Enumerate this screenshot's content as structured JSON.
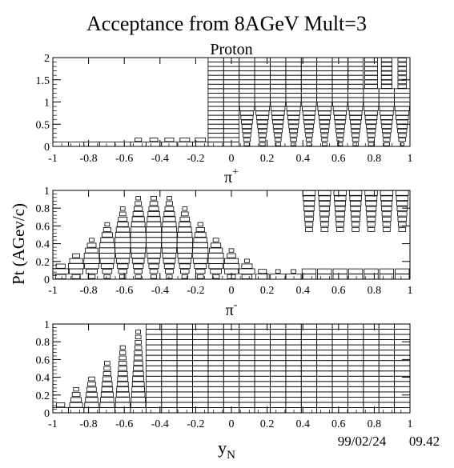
{
  "title": "Acceptance from 8AGeV Mult=3",
  "ylabel": "Pt (AGev/c)",
  "xlabel_base": "y",
  "xlabel_sub": "N",
  "date": "99/02/24",
  "time": "09.42",
  "chart_data": [
    {
      "type": "heatmap",
      "name": "Proton",
      "name_base": "Proton",
      "name_sup": "",
      "xlim": [
        -1,
        1
      ],
      "ylim": [
        0,
        2
      ],
      "xticks": [
        "-1",
        "-0.8",
        "-0.6",
        "-0.4",
        "-0.2",
        "0",
        "0.2",
        "0.4",
        "0.6",
        "0.8",
        "1"
      ],
      "yticks": [
        "0",
        "0.5",
        "1",
        "1.5",
        "2"
      ],
      "grid": false
    },
    {
      "type": "heatmap",
      "name": "π+",
      "name_base": "π",
      "name_sup": "+",
      "xlim": [
        -1,
        1
      ],
      "ylim": [
        0,
        1
      ],
      "xticks": [
        "-1",
        "-0.8",
        "-0.6",
        "-0.4",
        "-0.2",
        "0",
        "0.2",
        "0.4",
        "0.6",
        "0.8",
        "1"
      ],
      "yticks": [
        "0",
        "0.2",
        "0.4",
        "0.6",
        "0.8",
        "1"
      ],
      "grid": false
    },
    {
      "type": "heatmap",
      "name": "π-",
      "name_base": "π",
      "name_sup": "-",
      "xlim": [
        -1,
        1
      ],
      "ylim": [
        0,
        1
      ],
      "xticks": [
        "-1",
        "-0.8",
        "-0.6",
        "-0.4",
        "-0.2",
        "0",
        "0.2",
        "0.4",
        "0.6",
        "0.8",
        "1"
      ],
      "yticks": [
        "0",
        "0.2",
        "0.4",
        "0.6",
        "0.8",
        "1"
      ],
      "grid": false
    }
  ]
}
